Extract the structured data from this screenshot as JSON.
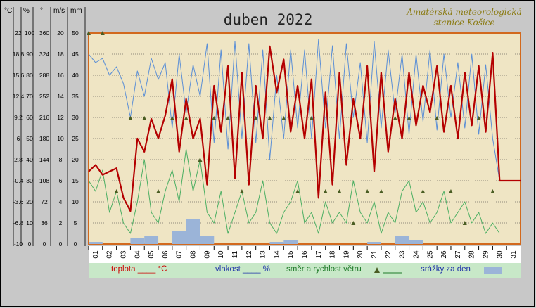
{
  "title": "duben 2022",
  "station": [
    "Amatérská meteorologická",
    "stanice Košice"
  ],
  "axes": {
    "headers": [
      "°C",
      "%",
      "°",
      "m/s",
      "mm"
    ],
    "temperature": [
      "22",
      "18.8",
      "15.6",
      "12.4",
      "9.2",
      "6",
      "2.8",
      "-0.4",
      "-3.6",
      "-6.8",
      "-10"
    ],
    "humidity": [
      "100",
      "90",
      "80",
      "70",
      "60",
      "50",
      "40",
      "30",
      "20",
      "10",
      "0"
    ],
    "direction": [
      "360",
      "324",
      "288",
      "252",
      "216",
      "180",
      "144",
      "108",
      "72",
      "36",
      "0"
    ],
    "wind_speed": [
      "20",
      "18",
      "16",
      "14",
      "12",
      "10",
      "8",
      "6",
      "4",
      "2",
      "0"
    ],
    "precip": [
      "50",
      "45",
      "40",
      "35",
      "30",
      "25",
      "20",
      "15",
      "10",
      "5",
      "0"
    ]
  },
  "days": [
    "01",
    "02",
    "03",
    "04",
    "05",
    "06",
    "07",
    "08",
    "09",
    "10",
    "11",
    "12",
    "13",
    "14",
    "15",
    "16",
    "17",
    "18",
    "19",
    "20",
    "21",
    "22",
    "23",
    "24",
    "25",
    "26",
    "27",
    "28",
    "29",
    "30",
    "31"
  ],
  "legend": {
    "temperature": "teplota ____ °C",
    "humidity": "vlhkost ____ %",
    "wind": "směr a rychlost větru",
    "precip": "srážky za den"
  },
  "colors": {
    "temperature": "#b40000",
    "humidity": "#5b8fd6",
    "wind_speed": "#4caf63",
    "wind_direction": "#4a5d23",
    "precip": "#9bb4d8",
    "plot_bg": "#f1e7c7",
    "border": "#d2691e"
  },
  "chart_data": {
    "type": "line",
    "title": "duben 2022",
    "x_unit": "day of month",
    "xlim": [
      1,
      32
    ],
    "series": [
      {
        "name": "teplota",
        "unit": "°C",
        "axis_range": [
          -10,
          22
        ],
        "x": [
          1.0,
          1.5,
          2.0,
          2.5,
          3.0,
          3.5,
          4.0,
          4.5,
          5.0,
          5.5,
          6.0,
          6.5,
          7.0,
          7.5,
          8.0,
          8.5,
          9.0,
          9.5,
          10.0,
          10.5,
          11.0,
          11.5,
          12.0,
          12.5,
          13.0,
          13.5,
          14.0,
          14.5,
          15.0,
          15.5,
          16.0,
          16.5,
          17.0,
          17.5,
          18.0,
          18.5,
          19.0,
          19.5,
          20.0,
          20.5,
          21.0,
          21.5,
          22.0,
          22.5,
          23.0,
          23.5,
          24.0,
          24.5,
          25.0,
          25.5,
          26.0,
          26.5,
          27.0,
          27.5,
          28.0,
          28.5,
          29.0,
          29.5,
          30.0,
          30.5,
          31.0,
          31.5,
          32.0
        ],
        "values": [
          1.0,
          2.0,
          0.5,
          1.0,
          1.5,
          -3.0,
          -5.0,
          6.0,
          4.0,
          9.0,
          6.0,
          9.5,
          15.0,
          4.0,
          12.0,
          6.0,
          9.0,
          -1.0,
          14.0,
          7.0,
          17.0,
          0.0,
          16.0,
          -1.0,
          14.0,
          6.0,
          20.0,
          13.0,
          18.0,
          7.0,
          14.0,
          6.0,
          15.0,
          -3.0,
          13.0,
          -1.0,
          16.0,
          2.0,
          12.0,
          6.0,
          17.0,
          1.0,
          16.0,
          4.0,
          12.0,
          6.0,
          16.0,
          8.0,
          14.0,
          10.0,
          17.0,
          7.0,
          14.0,
          6.0,
          16.0,
          8.0,
          17.0,
          7.0,
          19.0,
          -0.4,
          -0.4,
          -0.4,
          -0.4
        ]
      },
      {
        "name": "vlhkost",
        "unit": "%",
        "axis_range": [
          0,
          100
        ],
        "x": [
          1.0,
          1.5,
          2.0,
          2.5,
          3.0,
          3.5,
          4.0,
          4.5,
          5.0,
          5.5,
          6.0,
          6.5,
          7.0,
          7.5,
          8.0,
          8.5,
          9.0,
          9.5,
          10.0,
          10.5,
          11.0,
          11.5,
          12.0,
          12.5,
          13.0,
          13.5,
          14.0,
          14.5,
          15.0,
          15.5,
          16.0,
          16.5,
          17.0,
          17.5,
          18.0,
          18.5,
          19.0,
          19.5,
          20.0,
          20.5,
          21.0,
          21.5,
          22.0,
          22.5,
          23.0,
          23.5,
          24.0,
          24.5,
          25.0,
          25.5,
          26.0,
          26.5,
          27.0,
          27.5,
          28.0,
          28.5,
          29.0,
          29.5,
          30.0,
          30.5
        ],
        "values": [
          90,
          86,
          88,
          80,
          84,
          76,
          60,
          82,
          70,
          88,
          78,
          86,
          55,
          90,
          62,
          85,
          70,
          95,
          48,
          92,
          45,
          96,
          50,
          95,
          48,
          92,
          40,
          80,
          50,
          92,
          55,
          92,
          50,
          97,
          55,
          94,
          50,
          95,
          60,
          86,
          48,
          96,
          55,
          92,
          62,
          90,
          52,
          90,
          58,
          92,
          54,
          90,
          60,
          86,
          55,
          90,
          52,
          85,
          50,
          30
        ]
      },
      {
        "name": "rychlost větru",
        "unit": "m/s",
        "axis_range": [
          0,
          20
        ],
        "x": [
          1.0,
          1.5,
          2.0,
          2.5,
          3.0,
          3.5,
          4.0,
          4.5,
          5.0,
          5.5,
          6.0,
          6.5,
          7.0,
          7.5,
          8.0,
          8.5,
          9.0,
          9.5,
          10.0,
          10.5,
          11.0,
          11.5,
          12.0,
          12.5,
          13.0,
          13.5,
          14.0,
          14.5,
          15.0,
          15.5,
          16.0,
          16.5,
          17.0,
          17.5,
          18.0,
          18.5,
          19.0,
          19.5,
          20.0,
          20.5,
          21.0,
          21.5,
          22.0,
          22.5,
          23.0,
          23.5,
          24.0,
          24.5,
          25.0,
          25.5,
          26.0,
          26.5,
          27.0,
          27.5,
          28.0,
          28.5,
          29.0,
          29.5,
          30.0,
          30.5
        ],
        "values": [
          6,
          5,
          7,
          3,
          5,
          2,
          1,
          4,
          8,
          3,
          2,
          5,
          7,
          4,
          9,
          5,
          8,
          3,
          2,
          5,
          1,
          3,
          5,
          2,
          3,
          6,
          2,
          1,
          3,
          4,
          6,
          2,
          3,
          1,
          4,
          2,
          3,
          2,
          6,
          3,
          2,
          4,
          1,
          3,
          2,
          5,
          6,
          3,
          4,
          2,
          3,
          5,
          2,
          3,
          4,
          2,
          3,
          1,
          2,
          1
        ]
      },
      {
        "name": "směr větru",
        "unit": "°",
        "axis_range": [
          0,
          360
        ],
        "x": [
          1.0,
          2.0,
          3.0,
          4.0,
          5.0,
          6.0,
          7.0,
          8.0,
          9.0,
          10.0,
          11.0,
          12.0,
          13.0,
          14.0,
          15.0,
          16.0,
          17.0,
          18.0,
          19.0,
          20.0,
          21.0,
          22.0,
          23.0,
          24.0,
          25.0,
          26.0,
          27.0,
          28.0,
          29.0,
          30.0
        ],
        "values": [
          360,
          360,
          90,
          215,
          215,
          90,
          215,
          215,
          144,
          215,
          215,
          90,
          215,
          215,
          215,
          90,
          215,
          90,
          90,
          36,
          90,
          90,
          215,
          215,
          90,
          215,
          90,
          36,
          215,
          90
        ]
      },
      {
        "name": "srážky za den",
        "unit": "mm",
        "axis_range": [
          0,
          50
        ],
        "type": "bar",
        "x": [
          1,
          2,
          3,
          4,
          5,
          6,
          7,
          8,
          9,
          10,
          11,
          12,
          13,
          14,
          15,
          16,
          17,
          18,
          19,
          20,
          21,
          22,
          23,
          24,
          25,
          26,
          27,
          28,
          29,
          30
        ],
        "values": [
          0.5,
          0,
          0,
          1.5,
          2,
          0,
          3,
          6,
          2,
          0,
          0,
          0,
          0,
          0.5,
          1,
          0,
          0,
          0,
          0,
          0,
          0.5,
          0,
          2,
          1,
          0,
          0,
          0,
          0,
          0,
          0
        ]
      }
    ]
  }
}
